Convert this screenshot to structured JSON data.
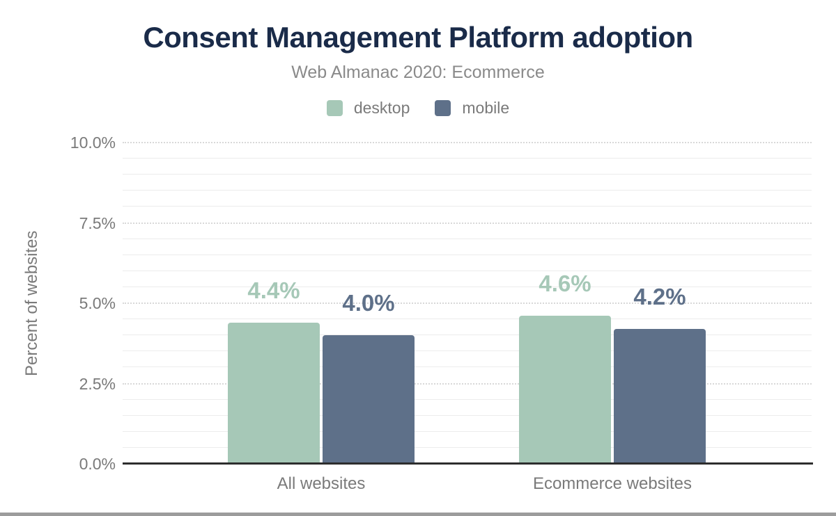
{
  "chart_data": {
    "type": "bar",
    "title": "Consent Management Platform adoption",
    "subtitle": "Web Almanac 2020: Ecommerce",
    "categories": [
      "All websites",
      "Ecommerce websites"
    ],
    "series": [
      {
        "name": "desktop",
        "color": "#a6c8b7",
        "values": [
          4.4,
          4.6
        ],
        "labels": [
          "4.4%",
          "4.6%"
        ]
      },
      {
        "name": "mobile",
        "color": "#5e7089",
        "values": [
          4.0,
          4.2
        ],
        "labels": [
          "4.0%",
          "4.2%"
        ]
      }
    ],
    "ylabel": "Percent of websites",
    "ylim": [
      0,
      10
    ],
    "y_ticks": [
      {
        "label": "10.0%",
        "value": 10
      },
      {
        "label": "7.5%",
        "value": 7.5
      },
      {
        "label": "5.0%",
        "value": 5
      },
      {
        "label": "2.5%",
        "value": 2.5
      },
      {
        "label": "0.0%",
        "value": 0
      }
    ],
    "grid": {
      "minor_step": 0.5,
      "major_step": 2.5,
      "major_style": "dotted",
      "minor_style": "solid"
    },
    "legend_position": "top"
  },
  "colors": {
    "title_text": "#1a2b49",
    "subtitle_text": "#8a8a8a",
    "axis_text": "#7a7a7a",
    "axis_line": "#2d2d2d",
    "gridline_minor": "#ececec",
    "gridline_major": "#d8d8d8",
    "desktop": "#a6c8b7",
    "mobile": "#5e7089",
    "bottom_bar": "#9c9c9c"
  }
}
